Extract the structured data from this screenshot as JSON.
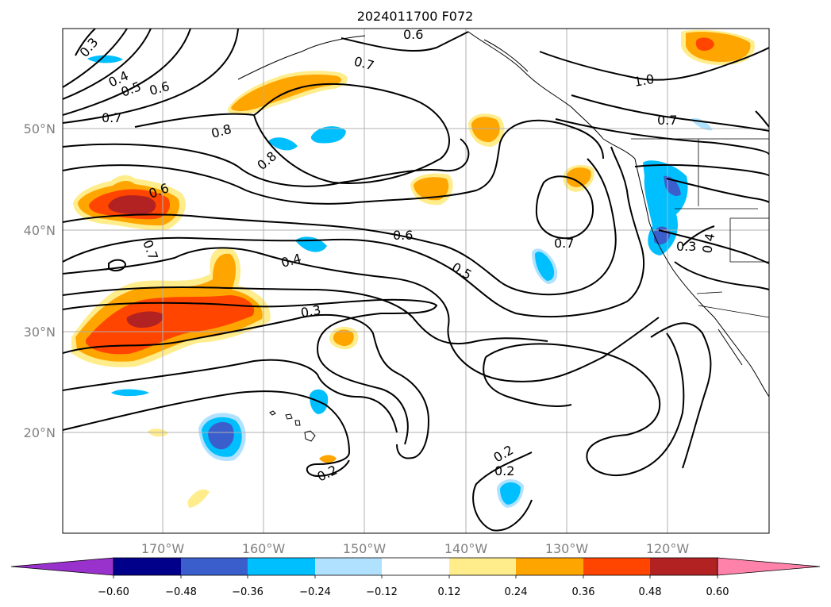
{
  "title": "2024011700 F072",
  "map": {
    "lat_labels": [
      "50°N",
      "40°N",
      "30°N",
      "20°N"
    ],
    "lon_labels": [
      "170°W",
      "160°W",
      "150°W",
      "140°W",
      "130°W",
      "120°W"
    ],
    "contour_labels": [
      "0.3",
      "0.4",
      "0.5",
      "0.6",
      "0.7",
      "0.6",
      "0.7",
      "1.0",
      "0.7",
      "0.8",
      "0.8",
      "0.6",
      "0.6",
      "0.7",
      "0.7",
      "0.4",
      "0.5",
      "0.3",
      "0.3",
      "0.4",
      "0.2",
      "0.2",
      "0.2"
    ],
    "gridlines": true
  },
  "colorbar": {
    "tick_labels": [
      "−0.60",
      "−0.48",
      "−0.36",
      "−0.24",
      "−0.12",
      "0.12",
      "0.24",
      "0.36",
      "0.48",
      "0.60"
    ],
    "colors": [
      "#9932cc",
      "#00008b",
      "#3a5fcd",
      "#00bfff",
      "#b0e2ff",
      "#ffffff",
      "#ffec8b",
      "#ffa500",
      "#ff4500",
      "#b22222",
      "#ff82ab"
    ]
  }
}
